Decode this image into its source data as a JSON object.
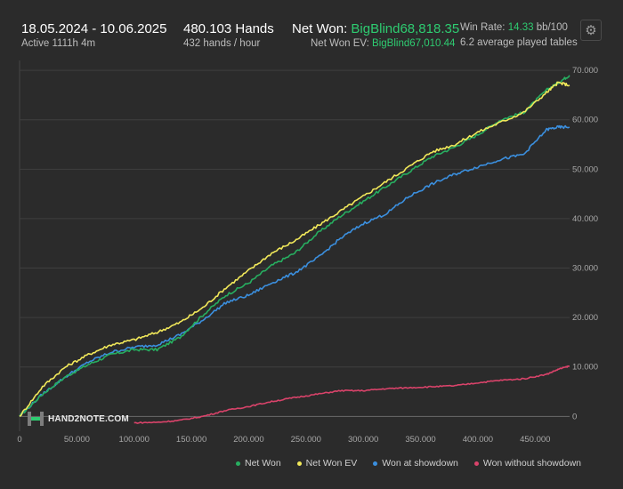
{
  "header": {
    "date_range": "18.05.2024 - 10.06.2025",
    "active": "Active 1111h 4m",
    "hands": "480.103 Hands",
    "hands_per_hour": "432 hands / hour",
    "net_won_label": "Net Won:",
    "net_won_value": "BigBlind68,818.35",
    "ev_label": "Net Won  EV:",
    "ev_value": "BigBlind67,010.44",
    "win_rate_label": "Win Rate:",
    "win_rate_value": "14.33",
    "win_rate_unit": "bb/100",
    "tables": "6.2 average played tables"
  },
  "toolbar": {
    "settings_icon": "gear-icon"
  },
  "logo": {
    "text": "HAND2NOTE.COM"
  },
  "chart_data": {
    "type": "line",
    "xlim": [
      0,
      480103
    ],
    "ylim": [
      -3000,
      72000
    ],
    "x_ticks": [
      {
        "value": 0,
        "label": "0"
      },
      {
        "value": 50000,
        "label": "50.000"
      },
      {
        "value": 100000,
        "label": "100.000"
      },
      {
        "value": 150000,
        "label": "150.000"
      },
      {
        "value": 200000,
        "label": "200.000"
      },
      {
        "value": 250000,
        "label": "250.000"
      },
      {
        "value": 300000,
        "label": "300.000"
      },
      {
        "value": 350000,
        "label": "350.000"
      },
      {
        "value": 400000,
        "label": "400.000"
      },
      {
        "value": 450000,
        "label": "450.000"
      }
    ],
    "y_ticks": [
      {
        "value": 0,
        "label": "0"
      },
      {
        "value": 10000,
        "label": "10.000"
      },
      {
        "value": 20000,
        "label": "20.000"
      },
      {
        "value": 30000,
        "label": "30.000"
      },
      {
        "value": 40000,
        "label": "40.000"
      },
      {
        "value": 50000,
        "label": "50.000"
      },
      {
        "value": 60000,
        "label": "60.000"
      },
      {
        "value": 70000,
        "label": "70.000"
      }
    ],
    "grid": true,
    "legend": "bottom-right",
    "x": [
      0,
      20000,
      40000,
      60000,
      80000,
      100000,
      120000,
      140000,
      160000,
      180000,
      200000,
      220000,
      240000,
      260000,
      280000,
      300000,
      320000,
      340000,
      360000,
      380000,
      400000,
      420000,
      440000,
      460000,
      470000,
      480000
    ],
    "series": [
      {
        "name": "Net Won",
        "color": "#27ae60",
        "values": [
          0,
          4500,
          8000,
          10500,
          12500,
          13500,
          13500,
          16000,
          20500,
          24500,
          27000,
          30500,
          33000,
          37000,
          40500,
          43500,
          46500,
          49500,
          52500,
          54500,
          57000,
          60000,
          61500,
          66000,
          67500,
          69000
        ]
      },
      {
        "name": "Net Won  EV",
        "color": "#f1e85a",
        "values": [
          0,
          6000,
          10000,
          12500,
          14500,
          15500,
          17000,
          19000,
          22000,
          26000,
          29500,
          33000,
          35500,
          38500,
          41500,
          44500,
          47500,
          50500,
          53500,
          55000,
          57500,
          59500,
          61500,
          65500,
          67500,
          67000
        ]
      },
      {
        "name": "Won at showdown",
        "color": "#3b8fde",
        "values": [
          0,
          4500,
          8000,
          11000,
          13000,
          14000,
          14500,
          16500,
          19500,
          23000,
          24500,
          27000,
          29000,
          32000,
          36000,
          39000,
          41000,
          44500,
          47000,
          49000,
          50500,
          52000,
          53000,
          58000,
          58500,
          58500
        ]
      },
      {
        "name": "Won without showdown",
        "color": "#d9436a",
        "values": [
          null,
          null,
          null,
          null,
          null,
          -1300,
          -1200,
          -800,
          0,
          1200,
          2000,
          3000,
          3800,
          4500,
          5200,
          5200,
          5600,
          5800,
          6000,
          6200,
          6800,
          7300,
          7600,
          8500,
          9500,
          10200
        ]
      }
    ]
  }
}
